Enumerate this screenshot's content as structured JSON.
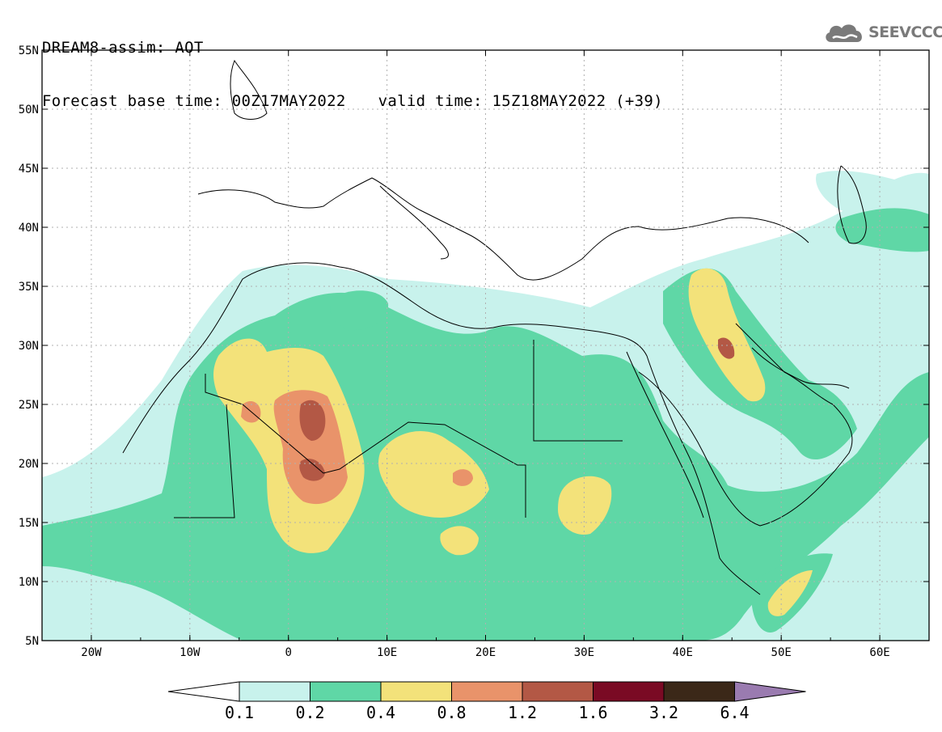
{
  "header": {
    "title": "DREAM8-assim: AOT",
    "base_time": "Forecast base time: 00Z17MAY2022",
    "valid_time": "valid time: 15Z18MAY2022 (+39)"
  },
  "logo": {
    "text": "SEEVCCC",
    "icon": "cloud-logo-icon"
  },
  "map": {
    "lat_labels": [
      "55N",
      "50N",
      "45N",
      "40N",
      "35N",
      "30N",
      "25N",
      "20N",
      "15N",
      "10N",
      "5N"
    ],
    "lat_values": [
      55,
      50,
      45,
      40,
      35,
      30,
      25,
      20,
      15,
      10,
      5
    ],
    "lon_labels": [
      "20W",
      "10W",
      "0",
      "10E",
      "20E",
      "30E",
      "40E",
      "50E",
      "60E"
    ],
    "lon_values": [
      -20,
      -10,
      0,
      10,
      20,
      30,
      40,
      50,
      60
    ],
    "extent": {
      "lon_min": -25,
      "lon_max": 65,
      "lat_min": 5,
      "lat_max": 55
    },
    "grid": "dotted"
  },
  "colorbar": {
    "levels": [
      "0.1",
      "0.2",
      "0.4",
      "0.8",
      "1.2",
      "1.6",
      "3.2",
      "6.4"
    ],
    "colors": [
      "#c8f2ec",
      "#5fd7a6",
      "#f3e27a",
      "#e9936a",
      "#b35845",
      "#7a0a24",
      "#3b2818",
      "#9a7bb0"
    ],
    "under_color": "#ffffff"
  }
}
